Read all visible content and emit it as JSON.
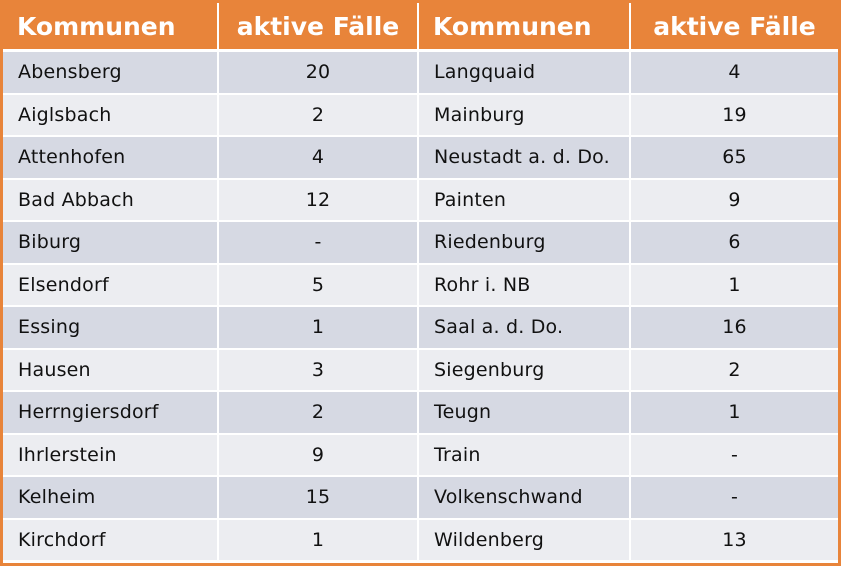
{
  "table": {
    "headers": [
      "Kommunen",
      "aktive Fälle",
      "Kommunen",
      "aktive Fälle"
    ],
    "rows": [
      [
        "Abensberg",
        "20",
        "Langquaid",
        "4"
      ],
      [
        "Aiglsbach",
        "2",
        "Mainburg",
        "19"
      ],
      [
        "Attenhofen",
        "4",
        "Neustadt a. d. Do.",
        "65"
      ],
      [
        "Bad Abbach",
        "12",
        "Painten",
        "9"
      ],
      [
        "Biburg",
        "-",
        "Riedenburg",
        "6"
      ],
      [
        "Elsendorf",
        "5",
        "Rohr i. NB",
        "1"
      ],
      [
        "Essing",
        "1",
        "Saal a. d. Do.",
        "16"
      ],
      [
        "Hausen",
        "3",
        "Siegenburg",
        "2"
      ],
      [
        "Herrngiersdorf",
        "2",
        "Teugn",
        "1"
      ],
      [
        "Ihrlerstein",
        "9",
        "Train",
        "-"
      ],
      [
        "Kelheim",
        "15",
        "Volkenschwand",
        "-"
      ],
      [
        "Kirchdorf",
        "1",
        "Wildenberg",
        "13"
      ]
    ]
  },
  "colors": {
    "header_bg": "#E8843A",
    "header_text": "#FFFFFF",
    "row_dark": "#D6D9E3",
    "row_light": "#ECEDF1"
  }
}
